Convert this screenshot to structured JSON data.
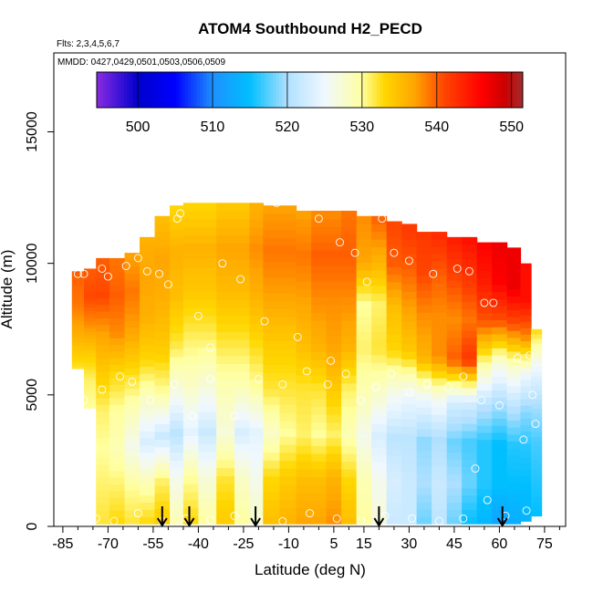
{
  "chart_data": {
    "type": "heatmap",
    "title": "ATOM4 Southbound H2_PECD",
    "subtitle_flights": "Flts: 2,3,4,5,6,7",
    "subtitle_dates": "MMDD: 0427,0429,0501,0503,0506,0509",
    "xlabel": "Latitude (deg N)",
    "ylabel": "Altitude (m)",
    "xlim": [
      -88,
      82
    ],
    "ylim": [
      0,
      18000
    ],
    "x_ticks": [
      -85,
      -70,
      -55,
      -40,
      -25,
      -10,
      5,
      15,
      30,
      45,
      60,
      75
    ],
    "x_minor_ticks": [
      -80,
      -75,
      -65,
      -60,
      -50,
      -45,
      -35,
      -30,
      -20,
      -15,
      -5,
      0,
      10,
      20,
      25,
      35,
      40,
      50,
      55,
      65,
      70,
      80
    ],
    "y_ticks": [
      0,
      5000,
      10000,
      15000
    ],
    "colorbar": {
      "range": [
        494.5,
        551.5
      ],
      "ticks": [
        500,
        510,
        520,
        530,
        540,
        550
      ],
      "stops": [
        [
          494.5,
          "#8a2be2"
        ],
        [
          500,
          "#0000cd"
        ],
        [
          505,
          "#0000ff"
        ],
        [
          510,
          "#1e90ff"
        ],
        [
          515,
          "#00bfff"
        ],
        [
          520,
          "#b0e0ff"
        ],
        [
          525,
          "#f0f8ff"
        ],
        [
          530,
          "#ffffa0"
        ],
        [
          533,
          "#ffd700"
        ],
        [
          537,
          "#ffa500"
        ],
        [
          541,
          "#ff4500"
        ],
        [
          546,
          "#ff0000"
        ],
        [
          549,
          "#cd0000"
        ],
        [
          551.5,
          "#a52a2a"
        ]
      ]
    },
    "profile_arrows_lat": [
      -52,
      -43,
      -21,
      20,
      61
    ],
    "profiles": [
      {
        "lat": -80,
        "bottom": 6000,
        "top": 9700,
        "values": [
          532,
          536,
          539,
          540
        ]
      },
      {
        "lat": -76,
        "bottom": 4500,
        "top": 9800,
        "values": [
          530,
          531,
          534,
          538,
          541,
          540
        ]
      },
      {
        "lat": -72,
        "bottom": 100,
        "top": 10200,
        "values": [
          532,
          531,
          530,
          531,
          534,
          537,
          541,
          540
        ]
      },
      {
        "lat": -67,
        "bottom": 100,
        "top": 10200,
        "values": [
          533,
          531,
          529,
          530,
          533,
          538,
          540,
          539
        ]
      },
      {
        "lat": -62,
        "bottom": 100,
        "top": 10400,
        "values": [
          532,
          530,
          526,
          529,
          533,
          537,
          539,
          537
        ]
      },
      {
        "lat": -57,
        "bottom": 100,
        "top": 11000,
        "values": [
          533,
          529,
          523,
          528,
          533,
          536,
          537,
          536
        ]
      },
      {
        "lat": -52,
        "bottom": 100,
        "top": 11800,
        "values": [
          534,
          531,
          522,
          530,
          534,
          536,
          537,
          535
        ]
      },
      {
        "lat": -47,
        "bottom": 100,
        "top": 12200,
        "values": [
          529,
          526,
          521,
          527,
          532,
          535,
          536,
          533
        ]
      },
      {
        "lat": -43,
        "bottom": 100,
        "top": 12300,
        "values": [
          533,
          530,
          524,
          528,
          531,
          534,
          536,
          533
        ]
      },
      {
        "lat": -37,
        "bottom": 100,
        "top": 12300,
        "values": [
          530,
          527,
          522,
          527,
          531,
          534,
          536,
          533
        ]
      },
      {
        "lat": -31,
        "bottom": 100,
        "top": 12300,
        "values": [
          534,
          532,
          527,
          529,
          532,
          535,
          537,
          534
        ]
      },
      {
        "lat": -25,
        "bottom": 100,
        "top": 12300,
        "values": [
          530,
          528,
          523,
          529,
          532,
          535,
          537,
          534
        ]
      },
      {
        "lat": -21,
        "bottom": 100,
        "top": 12300,
        "values": [
          528,
          526,
          524,
          530,
          533,
          536,
          538,
          536
        ]
      },
      {
        "lat": -16,
        "bottom": 100,
        "top": 12200,
        "values": [
          535,
          533,
          528,
          532,
          534,
          537,
          539,
          537
        ]
      },
      {
        "lat": -10,
        "bottom": 100,
        "top": 12200,
        "values": [
          536,
          534,
          530,
          532,
          534,
          537,
          539,
          537
        ]
      },
      {
        "lat": -5,
        "bottom": 100,
        "top": 12000,
        "values": [
          537,
          535,
          531,
          532,
          535,
          537,
          539,
          537
        ]
      },
      {
        "lat": 0,
        "bottom": 100,
        "top": 12000,
        "values": [
          537,
          535,
          530,
          532,
          536,
          538,
          540,
          538
        ]
      },
      {
        "lat": 5,
        "bottom": 100,
        "top": 12000,
        "values": [
          538,
          536,
          531,
          534,
          537,
          538,
          540,
          538
        ]
      },
      {
        "lat": 10,
        "bottom": 100,
        "top": 12000,
        "values": [
          535,
          533,
          529,
          531,
          536,
          538,
          540,
          539
        ]
      },
      {
        "lat": 15,
        "bottom": 100,
        "top": 11800,
        "values": [
          530,
          529,
          526,
          529,
          531,
          530,
          537,
          538
        ]
      },
      {
        "lat": 20,
        "bottom": 100,
        "top": 11800,
        "values": [
          527,
          526,
          523,
          528,
          532,
          531,
          536,
          540
        ]
      },
      {
        "lat": 25,
        "bottom": 100,
        "top": 11600,
        "values": [
          522,
          523,
          521,
          526,
          533,
          535,
          540,
          541
        ]
      },
      {
        "lat": 30,
        "bottom": 100,
        "top": 11500,
        "values": [
          522,
          522,
          521,
          525,
          534,
          537,
          540,
          542
        ]
      },
      {
        "lat": 35,
        "bottom": 100,
        "top": 11200,
        "values": [
          518,
          520,
          519,
          525,
          536,
          538,
          541,
          542
        ]
      },
      {
        "lat": 40,
        "bottom": 100,
        "top": 11200,
        "values": [
          521,
          522,
          520,
          526,
          538,
          538,
          540,
          543
        ]
      },
      {
        "lat": 45,
        "bottom": 100,
        "top": 11000,
        "values": [
          518,
          520,
          518,
          523,
          540,
          538,
          541,
          544
        ]
      },
      {
        "lat": 50,
        "bottom": 100,
        "top": 11000,
        "values": [
          515,
          518,
          517,
          523,
          542,
          539,
          542,
          545
        ]
      },
      {
        "lat": 55,
        "bottom": 100,
        "top": 10800,
        "values": [
          514,
          516,
          516,
          521,
          530,
          540,
          544,
          546
        ]
      },
      {
        "lat": 60,
        "bottom": 100,
        "top": 10800,
        "values": [
          512,
          515,
          515,
          520,
          527,
          540,
          546,
          547
        ]
      },
      {
        "lat": 65,
        "bottom": 100,
        "top": 10600,
        "values": [
          513,
          515,
          516,
          521,
          528,
          540,
          547,
          547
        ]
      },
      {
        "lat": 69,
        "bottom": 200,
        "top": 10000,
        "values": [
          514,
          515,
          516,
          519,
          525,
          538,
          545,
          545
        ]
      },
      {
        "lat": 72,
        "bottom": 400,
        "top": 7500,
        "values": [
          515,
          516,
          517,
          520,
          525,
          533
        ]
      }
    ],
    "sample_points": [
      {
        "lat": -80,
        "alt": 9600
      },
      {
        "lat": -78,
        "alt": 9600
      },
      {
        "lat": -72,
        "alt": 9800
      },
      {
        "lat": -70,
        "alt": 9500
      },
      {
        "lat": -66,
        "alt": 10400
      },
      {
        "lat": -64,
        "alt": 9900
      },
      {
        "lat": -60,
        "alt": 10200
      },
      {
        "lat": -57,
        "alt": 9700
      },
      {
        "lat": -53,
        "alt": 9600
      },
      {
        "lat": -50,
        "alt": 9200
      },
      {
        "lat": -47,
        "alt": 11700
      },
      {
        "lat": -46,
        "alt": 11900
      },
      {
        "lat": -40,
        "alt": 8000
      },
      {
        "lat": -36,
        "alt": 6800
      },
      {
        "lat": -32,
        "alt": 10000
      },
      {
        "lat": -26,
        "alt": 9400
      },
      {
        "lat": -18,
        "alt": 7800
      },
      {
        "lat": -14,
        "alt": 12300
      },
      {
        "lat": -7,
        "alt": 7200
      },
      {
        "lat": 0,
        "alt": 11700
      },
      {
        "lat": 4,
        "alt": 6300
      },
      {
        "lat": 7,
        "alt": 10800
      },
      {
        "lat": 12,
        "alt": 10400
      },
      {
        "lat": 16,
        "alt": 9300
      },
      {
        "lat": 21,
        "alt": 11700
      },
      {
        "lat": 25,
        "alt": 10400
      },
      {
        "lat": 30,
        "alt": 10100
      },
      {
        "lat": 38,
        "alt": 9600
      },
      {
        "lat": 46,
        "alt": 9800
      },
      {
        "lat": 50,
        "alt": 9700
      },
      {
        "lat": 55,
        "alt": 8500
      },
      {
        "lat": 58,
        "alt": 8500
      },
      {
        "lat": 62,
        "alt": 11200
      },
      {
        "lat": 66,
        "alt": 6400
      },
      {
        "lat": 70,
        "alt": 6500
      },
      {
        "lat": -78,
        "alt": 4800
      },
      {
        "lat": -72,
        "alt": 5200
      },
      {
        "lat": -66,
        "alt": 5700
      },
      {
        "lat": -62,
        "alt": 5500
      },
      {
        "lat": -56,
        "alt": 4800
      },
      {
        "lat": -48,
        "alt": 5400
      },
      {
        "lat": -42,
        "alt": 4200
      },
      {
        "lat": -36,
        "alt": 5600
      },
      {
        "lat": -28,
        "alt": 4200
      },
      {
        "lat": -20,
        "alt": 5600
      },
      {
        "lat": -12,
        "alt": 5400
      },
      {
        "lat": -4,
        "alt": 5900
      },
      {
        "lat": 3,
        "alt": 5400
      },
      {
        "lat": 9,
        "alt": 5800
      },
      {
        "lat": 14,
        "alt": 4800
      },
      {
        "lat": 19,
        "alt": 5300
      },
      {
        "lat": 24,
        "alt": 5800
      },
      {
        "lat": 30,
        "alt": 5100
      },
      {
        "lat": 36,
        "alt": 5400
      },
      {
        "lat": 43,
        "alt": 5300
      },
      {
        "lat": 48,
        "alt": 5700
      },
      {
        "lat": 54,
        "alt": 4800
      },
      {
        "lat": 60,
        "alt": 4600
      },
      {
        "lat": 68,
        "alt": 3300
      },
      {
        "lat": 72,
        "alt": 3900
      },
      {
        "lat": -74,
        "alt": 300
      },
      {
        "lat": -68,
        "alt": 200
      },
      {
        "lat": -60,
        "alt": 500
      },
      {
        "lat": -52,
        "alt": 200
      },
      {
        "lat": -44,
        "alt": 300
      },
      {
        "lat": -36,
        "alt": 250
      },
      {
        "lat": -28,
        "alt": 400
      },
      {
        "lat": -20,
        "alt": 300
      },
      {
        "lat": -12,
        "alt": 200
      },
      {
        "lat": -3,
        "alt": 500
      },
      {
        "lat": 6,
        "alt": 300
      },
      {
        "lat": 14,
        "alt": 200
      },
      {
        "lat": 22,
        "alt": 400
      },
      {
        "lat": 31,
        "alt": 300
      },
      {
        "lat": 40,
        "alt": 200
      },
      {
        "lat": 48,
        "alt": 300
      },
      {
        "lat": 56,
        "alt": 1000
      },
      {
        "lat": 62,
        "alt": 400
      },
      {
        "lat": 69,
        "alt": 600
      },
      {
        "lat": 52,
        "alt": 2200
      },
      {
        "lat": 71,
        "alt": 5000
      }
    ]
  }
}
